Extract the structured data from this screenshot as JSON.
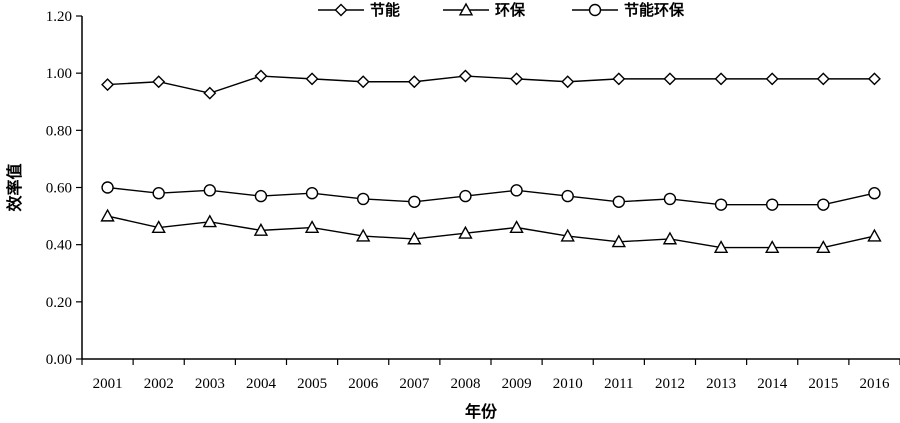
{
  "chart_data": {
    "type": "line",
    "xlabel": "年份",
    "ylabel": "效率值",
    "ylim": [
      0,
      1.2
    ],
    "yticks": [
      "0.00",
      "0.20",
      "0.40",
      "0.60",
      "0.80",
      "1.00",
      "1.20"
    ],
    "categories": [
      "2001",
      "2002",
      "2003",
      "2004",
      "2005",
      "2006",
      "2007",
      "2008",
      "2009",
      "2010",
      "2011",
      "2012",
      "2013",
      "2014",
      "2015",
      "2016"
    ],
    "legend_position": "top",
    "grid": false,
    "series": [
      {
        "name": "节能",
        "marker": "diamond",
        "values": [
          0.96,
          0.97,
          0.93,
          0.99,
          0.98,
          0.97,
          0.97,
          0.99,
          0.98,
          0.97,
          0.98,
          0.98,
          0.98,
          0.98,
          0.98,
          0.98
        ]
      },
      {
        "name": "环保",
        "marker": "triangle",
        "values": [
          0.5,
          0.46,
          0.48,
          0.45,
          0.46,
          0.43,
          0.42,
          0.44,
          0.46,
          0.43,
          0.41,
          0.42,
          0.39,
          0.39,
          0.39,
          0.43
        ]
      },
      {
        "name": "节能环保",
        "marker": "circle",
        "values": [
          0.6,
          0.58,
          0.59,
          0.57,
          0.58,
          0.56,
          0.55,
          0.57,
          0.59,
          0.57,
          0.55,
          0.56,
          0.54,
          0.54,
          0.54,
          0.58
        ]
      }
    ]
  }
}
